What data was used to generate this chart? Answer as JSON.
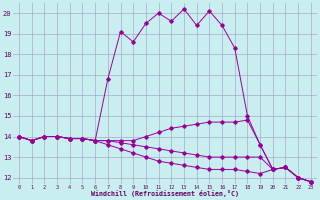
{
  "xlabel": "Windchill (Refroidissement éolien,°C)",
  "background_color": "#c8eef0",
  "grid_color": "#aaaacc",
  "line_color": "#990099",
  "xmin": 0,
  "xmax": 23,
  "ymin": 12,
  "ymax": 20,
  "x_hours": [
    0,
    1,
    2,
    3,
    4,
    5,
    6,
    7,
    8,
    9,
    10,
    11,
    12,
    13,
    14,
    15,
    16,
    17,
    18,
    19,
    20,
    21,
    22,
    23
  ],
  "temp": [
    14.0,
    13.8,
    14.0,
    14.0,
    13.9,
    13.9,
    13.8,
    16.8,
    19.1,
    18.6,
    19.5,
    20.0,
    19.6,
    20.2,
    19.4,
    20.1,
    19.4,
    18.3,
    15.0,
    13.6,
    12.4,
    12.5,
    12.0,
    11.8
  ],
  "wc1": [
    14.0,
    13.8,
    14.0,
    14.0,
    13.9,
    13.9,
    13.8,
    13.8,
    13.8,
    13.8,
    14.0,
    14.2,
    14.4,
    14.5,
    14.6,
    14.7,
    14.7,
    14.7,
    14.8,
    13.6,
    12.4,
    12.5,
    12.0,
    11.8
  ],
  "wc2": [
    14.0,
    13.8,
    14.0,
    14.0,
    13.9,
    13.9,
    13.8,
    13.8,
    13.7,
    13.6,
    13.5,
    13.4,
    13.3,
    13.2,
    13.1,
    13.0,
    13.0,
    13.0,
    13.0,
    13.0,
    12.4,
    12.5,
    12.0,
    11.8
  ],
  "wc3": [
    14.0,
    13.8,
    14.0,
    14.0,
    13.9,
    13.9,
    13.8,
    13.6,
    13.4,
    13.2,
    13.0,
    12.8,
    12.7,
    12.6,
    12.5,
    12.4,
    12.4,
    12.4,
    12.3,
    12.2,
    12.4,
    12.5,
    12.0,
    11.8
  ]
}
